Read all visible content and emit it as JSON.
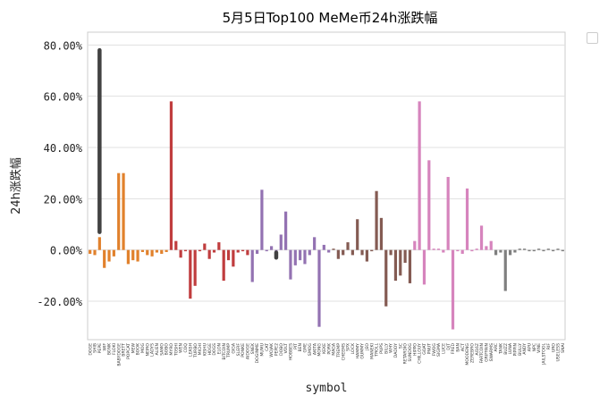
{
  "chart_data": {
    "type": "bar",
    "title": "5月5日Top100 MeMe币24h涨跌幅",
    "xlabel": "symbol",
    "ylabel": "24h涨跌幅",
    "ylim": [
      -35,
      85
    ],
    "yticks": [
      -20,
      0,
      20,
      40,
      60,
      80
    ],
    "ytick_labels": [
      "-20.00%",
      "0.00%",
      "20.00%",
      "40.00%",
      "60.00%",
      "80.00%"
    ],
    "grid": "horizontal",
    "legend": "top-right",
    "categories": [
      "DOGE",
      "SHIB",
      "PEPE",
      "WIF",
      "BONK",
      "FLOKI",
      "BABYDOGE",
      "BRETT",
      "POPCAT",
      "MEW",
      "BOOK",
      "MOG",
      "NEIRO",
      "LADYS",
      "ALIEN",
      "SAMO",
      "BOBO",
      "MYRO",
      "TOSHI",
      "WEN",
      "COQ",
      "LEASH",
      "TURBO",
      "MICHI",
      "KISHU",
      "HOGE",
      "DOGS",
      "ELON",
      "BITCOIN",
      "TRUMP",
      "GIGA",
      "SLERF",
      "PONKE",
      "AIDOGE",
      "SNEK",
      "DOGINME",
      "MUMU",
      "CAT",
      "WOJAK",
      "PEPE2",
      "DOBO",
      "VOLT",
      "HOBBES",
      "PIT",
      "BEN",
      "GME",
      "SMOG",
      "AKITA",
      "MONG",
      "KEKE",
      "PORK",
      "MAGA",
      "TREMP",
      "CHEEMS",
      "SPX",
      "LOCK",
      "HAMMY",
      "GUMMY",
      "JEO",
      "MANEKI",
      "TROLL",
      "PUPS",
      "BILLY",
      "WHY",
      "DADDY",
      "SC",
      "RETARDIO",
      "SUNDOG",
      "HIPPO",
      "CHILLGUY",
      "GOAT",
      "PNUT",
      "FWOG",
      "SIGMA",
      "LUCE",
      "DJT",
      "FRED",
      "BAN",
      "ACT",
      "MOODENG",
      "ZEREBRO",
      "AI16Z",
      "FARTCOIN",
      "GRIFFAIN",
      "SWARMS",
      "ARC",
      "TANK",
      "BUZZ",
      "LUNA",
      "PIPPIN",
      "BULLY",
      "ANDY",
      "APU",
      "NPC",
      "VINE",
      "JAILSTOOL",
      "RIF",
      "URO",
      "USELESS",
      "SNAI"
    ],
    "values": [
      -1.5,
      -2.0,
      5.0,
      -7.0,
      -4.5,
      -2.5,
      30.0,
      30.0,
      -5.5,
      -4.0,
      -4.5,
      -0.8,
      -2.0,
      -2.5,
      -1.0,
      -1.5,
      -0.8,
      58.0,
      3.5,
      -3.0,
      -0.5,
      -19.0,
      -14.0,
      -0.5,
      2.5,
      -3.5,
      -1.0,
      3.0,
      -12.0,
      -4.0,
      -6.5,
      -1.0,
      -0.5,
      -2.0,
      -12.5,
      -1.5,
      23.5,
      -0.5,
      1.5,
      -3.0,
      6.0,
      15.0,
      -11.5,
      -6.0,
      -4.0,
      -5.5,
      -2.0,
      5.0,
      -30.0,
      2.0,
      -1.0,
      0.5,
      -3.5,
      -2.0,
      3.0,
      -2.0,
      12.0,
      -2.0,
      -4.5,
      -0.5,
      23.0,
      12.5,
      -22.0,
      -2.0,
      -12.0,
      -10.0,
      -5.0,
      -13.0,
      3.5,
      58.0,
      -13.5,
      35.0,
      0.5,
      0.5,
      -1.0,
      28.5,
      -31.0,
      -0.5,
      -1.5,
      24.0,
      -0.5,
      0.5,
      9.5,
      1.5,
      3.5,
      -2.0,
      -1.0,
      -16.0,
      -2.0,
      -1.0,
      0.5,
      0.5,
      -0.5,
      -0.5,
      0.5,
      -0.5,
      0.5,
      -0.5,
      0.5,
      -0.5
    ],
    "error_bars": [
      {
        "category": "PEPE",
        "low": 7.0,
        "high": 78.0
      },
      {
        "category": "PEPE2",
        "low": -3.0,
        "high": -1.0
      }
    ]
  }
}
